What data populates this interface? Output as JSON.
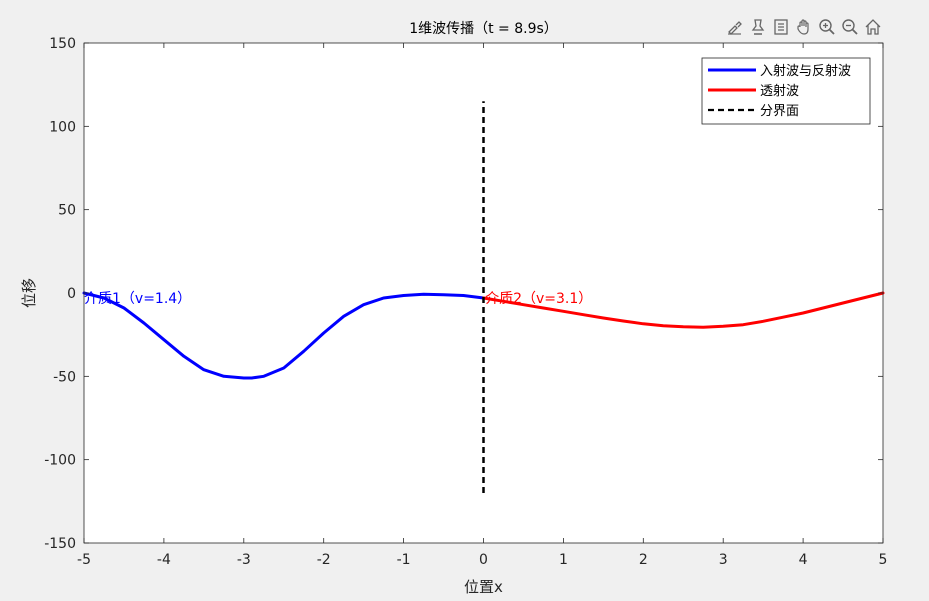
{
  "toolbar": {
    "icons": [
      "brush-icon",
      "pin-icon",
      "datatip-icon",
      "pan-icon",
      "zoom-in-icon",
      "zoom-out-icon",
      "home-icon"
    ]
  },
  "colors": {
    "background": "#f0f0f0",
    "axes_bg": "#ffffff",
    "incident": "#0000ff",
    "transmitted": "#ff0000",
    "interface": "#000000"
  },
  "chart_data": {
    "type": "line",
    "title": "1维波传播（t = 8.9s）",
    "xlabel": "位置x",
    "ylabel": "位移",
    "xlim": [
      -5,
      5
    ],
    "ylim": [
      -150,
      150
    ],
    "xticks": [
      -5,
      -4,
      -3,
      -2,
      -1,
      0,
      1,
      2,
      3,
      4,
      5
    ],
    "yticks": [
      150,
      100,
      50,
      0,
      -50,
      -100,
      -150
    ],
    "grid": false,
    "legend_position": "top-right",
    "series": [
      {
        "name": "入射波与反射波",
        "color": "#0000ff",
        "x": [
          -5.0,
          -4.75,
          -4.5,
          -4.25,
          -4.0,
          -3.75,
          -3.5,
          -3.25,
          -3.0,
          -2.9,
          -2.75,
          -2.5,
          -2.25,
          -2.0,
          -1.75,
          -1.5,
          -1.25,
          -1.0,
          -0.75,
          -0.5,
          -0.25,
          0.0
        ],
        "y": [
          0,
          -3,
          -9,
          -18,
          -28,
          -38,
          -46,
          -50,
          -51,
          -51,
          -50,
          -45,
          -35,
          -24,
          -14,
          -7,
          -3,
          -1.5,
          -0.8,
          -1,
          -1.5,
          -3
        ]
      },
      {
        "name": "透射波",
        "color": "#ff0000",
        "x": [
          0.0,
          0.25,
          0.5,
          0.75,
          1.0,
          1.25,
          1.5,
          1.75,
          2.0,
          2.25,
          2.5,
          2.75,
          3.0,
          3.25,
          3.5,
          3.75,
          4.0,
          4.25,
          4.5,
          4.75,
          5.0
        ],
        "y": [
          -3,
          -5,
          -7,
          -9,
          -11,
          -13,
          -15,
          -16.8,
          -18.5,
          -19.6,
          -20.3,
          -20.5,
          -20,
          -19,
          -17,
          -14.5,
          -12,
          -9,
          -6,
          -3,
          0
        ]
      },
      {
        "name": "分界面",
        "color": "#000000",
        "dashed": true,
        "x": [
          0,
          0
        ],
        "y": [
          -120,
          115
        ]
      }
    ],
    "annotations": [
      {
        "text": "介质1（v=1.4）",
        "x": -5.0,
        "y": -3,
        "color": "#0000ff"
      },
      {
        "text": "介质2（v=3.1）",
        "x": 0.02,
        "y": -3,
        "color": "#ff0000"
      }
    ]
  }
}
